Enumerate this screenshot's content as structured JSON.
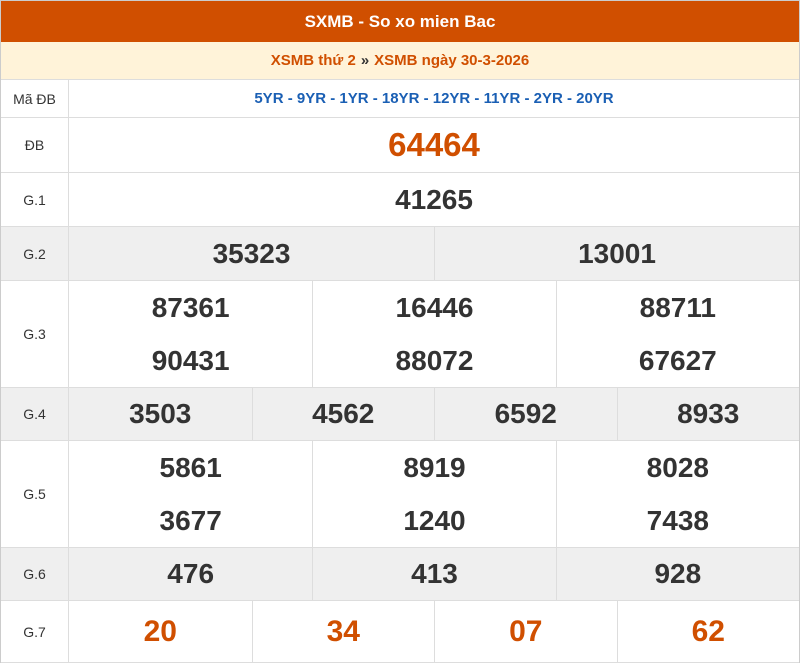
{
  "header": {
    "title": "SXMB - So xo mien Bac"
  },
  "subheader": {
    "day_link": "XSMB thứ 2",
    "separator": "»",
    "date_link": "XSMB ngày 30-3-2026"
  },
  "rows": [
    {
      "label": "Mã ĐB",
      "values": [
        "5YR - 9YR - 1YR - 18YR - 12YR - 11YR - 2YR - 20YR"
      ]
    },
    {
      "label": "ĐB",
      "values": [
        "64464"
      ]
    },
    {
      "label": "G.1",
      "values": [
        "41265"
      ]
    },
    {
      "label": "G.2",
      "values": [
        "35323",
        "13001"
      ]
    },
    {
      "label": "G.3",
      "values": [
        "87361",
        "16446",
        "88711",
        "90431",
        "88072",
        "67627"
      ]
    },
    {
      "label": "G.4",
      "values": [
        "3503",
        "4562",
        "6592",
        "8933"
      ]
    },
    {
      "label": "G.5",
      "values": [
        "5861",
        "8919",
        "8028",
        "3677",
        "1240",
        "7438"
      ]
    },
    {
      "label": "G.6",
      "values": [
        "476",
        "413",
        "928"
      ]
    },
    {
      "label": "G.7",
      "values": [
        "20",
        "34",
        "07",
        "62"
      ]
    }
  ]
}
